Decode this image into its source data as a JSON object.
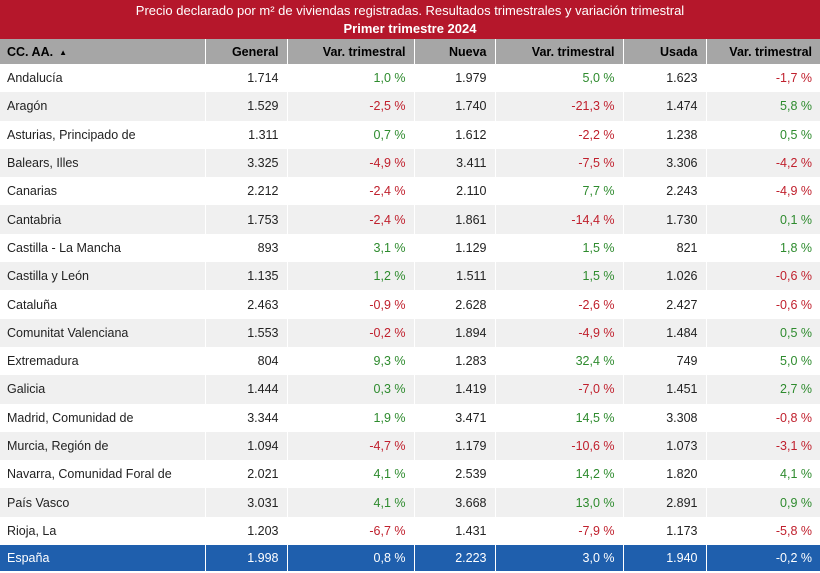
{
  "title": {
    "line1": "Precio declarado por m² de viviendas registradas. Resultados trimestrales y variación trimestral",
    "line2": "Primer trimestre 2024"
  },
  "table": {
    "headers": [
      "CC. AA.",
      "General",
      "Var. trimestral",
      "Nueva",
      "Var. trimestral",
      "Usada",
      "Var. trimestral"
    ],
    "sort_indicator": "▲",
    "rows": [
      [
        "Andalucía",
        "1.714",
        "1,0 %",
        "1.979",
        "5,0 %",
        "1.623",
        "-1,7 %"
      ],
      [
        "Aragón",
        "1.529",
        "-2,5 %",
        "1.740",
        "-21,3 %",
        "1.474",
        "5,8 %"
      ],
      [
        "Asturias, Principado de",
        "1.311",
        "0,7 %",
        "1.612",
        "-2,2 %",
        "1.238",
        "0,5 %"
      ],
      [
        "Balears, Illes",
        "3.325",
        "-4,9 %",
        "3.411",
        "-7,5 %",
        "3.306",
        "-4,2 %"
      ],
      [
        "Canarias",
        "2.212",
        "-2,4 %",
        "2.110",
        "7,7 %",
        "2.243",
        "-4,9 %"
      ],
      [
        "Cantabria",
        "1.753",
        "-2,4 %",
        "1.861",
        "-14,4 %",
        "1.730",
        "0,1 %"
      ],
      [
        "Castilla - La Mancha",
        "893",
        "3,1 %",
        "1.129",
        "1,5 %",
        "821",
        "1,8 %"
      ],
      [
        "Castilla y León",
        "1.135",
        "1,2 %",
        "1.511",
        "1,5 %",
        "1.026",
        "-0,6 %"
      ],
      [
        "Cataluña",
        "2.463",
        "-0,9 %",
        "2.628",
        "-2,6 %",
        "2.427",
        "-0,6 %"
      ],
      [
        "Comunitat Valenciana",
        "1.553",
        "-0,2 %",
        "1.894",
        "-4,9 %",
        "1.484",
        "0,5 %"
      ],
      [
        "Extremadura",
        "804",
        "9,3 %",
        "1.283",
        "32,4 %",
        "749",
        "5,0 %"
      ],
      [
        "Galicia",
        "1.444",
        "0,3 %",
        "1.419",
        "-7,0 %",
        "1.451",
        "2,7 %"
      ],
      [
        "Madrid, Comunidad de",
        "3.344",
        "1,9 %",
        "3.471",
        "14,5 %",
        "3.308",
        "-0,8 %"
      ],
      [
        "Murcia, Región de",
        "1.094",
        "-4,7 %",
        "1.179",
        "-10,6 %",
        "1.073",
        "-3,1 %"
      ],
      [
        "Navarra, Comunidad Foral de",
        "2.021",
        "4,1 %",
        "2.539",
        "14,2 %",
        "1.820",
        "4,1 %"
      ],
      [
        "País Vasco",
        "3.031",
        "4,1 %",
        "3.668",
        "13,0 %",
        "2.891",
        "0,9 %"
      ],
      [
        "Rioja, La",
        "1.203",
        "-6,7 %",
        "1.431",
        "-7,9 %",
        "1.173",
        "-5,8 %"
      ]
    ],
    "total": [
      "España",
      "1.998",
      "0,8 %",
      "2.223",
      "3,0 %",
      "1.940",
      "-0,2 %"
    ]
  },
  "colors": {
    "title_bg": "#b5172b",
    "header_bg": "#a6a6a6",
    "total_bg": "#1f5fad",
    "positive": "#2e8b2e",
    "negative": "#c0202d"
  }
}
